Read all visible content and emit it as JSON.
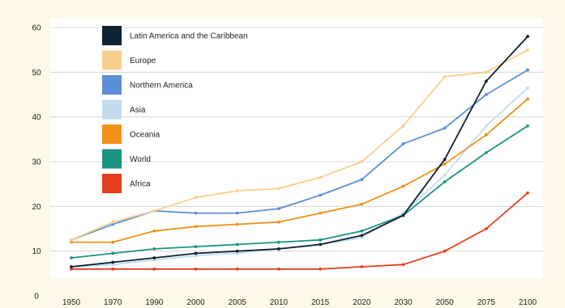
{
  "chart_data": {
    "type": "line",
    "title": "",
    "xlabel": "",
    "ylabel": "",
    "categories": [
      "1950",
      "1970",
      "1990",
      "2000",
      "2005",
      "2010",
      "2015",
      "2020",
      "2030",
      "2050",
      "2075",
      "2100"
    ],
    "ylim": [
      0,
      60
    ],
    "yticks": [
      0,
      10,
      20,
      30,
      40,
      50,
      60
    ],
    "grid": true,
    "legend_position": "top-left",
    "series": [
      {
        "name": "Latin America and the Caribbean",
        "color": "#0d2233",
        "values": [
          6.5,
          7.5,
          8.5,
          9.5,
          10.0,
          10.5,
          11.5,
          13.5,
          18.0,
          30.5,
          48.0,
          58.0
        ]
      },
      {
        "name": "Europe",
        "color": "#f8cf8c",
        "values": [
          12.5,
          16.5,
          19.0,
          22.0,
          23.5,
          24.0,
          26.5,
          30.0,
          38.0,
          49.0,
          50.0,
          55.0
        ]
      },
      {
        "name": "Northern America",
        "color": "#5b8fd6",
        "values": [
          12.5,
          16.0,
          19.0,
          18.5,
          18.5,
          19.5,
          22.5,
          26.0,
          34.0,
          37.5,
          45.0,
          50.5
        ]
      },
      {
        "name": "Asia",
        "color": "#c4dbef",
        "values": [
          6.5,
          7.0,
          8.0,
          9.0,
          9.5,
          10.5,
          11.5,
          13.0,
          18.5,
          27.0,
          38.0,
          46.5
        ]
      },
      {
        "name": "Oceania",
        "color": "#ef9019",
        "values": [
          12.0,
          12.0,
          14.5,
          15.5,
          16.0,
          16.5,
          18.5,
          20.5,
          24.5,
          29.5,
          36.0,
          44.0
        ]
      },
      {
        "name": "World",
        "color": "#199580",
        "values": [
          8.5,
          9.5,
          10.5,
          11.0,
          11.5,
          12.0,
          12.5,
          14.5,
          18.0,
          25.5,
          32.0,
          38.0
        ]
      },
      {
        "name": "Africa",
        "color": "#e43e1f",
        "values": [
          6.0,
          6.0,
          6.0,
          6.0,
          6.0,
          6.0,
          6.0,
          6.5,
          7.0,
          10.0,
          15.0,
          23.0
        ]
      }
    ]
  }
}
